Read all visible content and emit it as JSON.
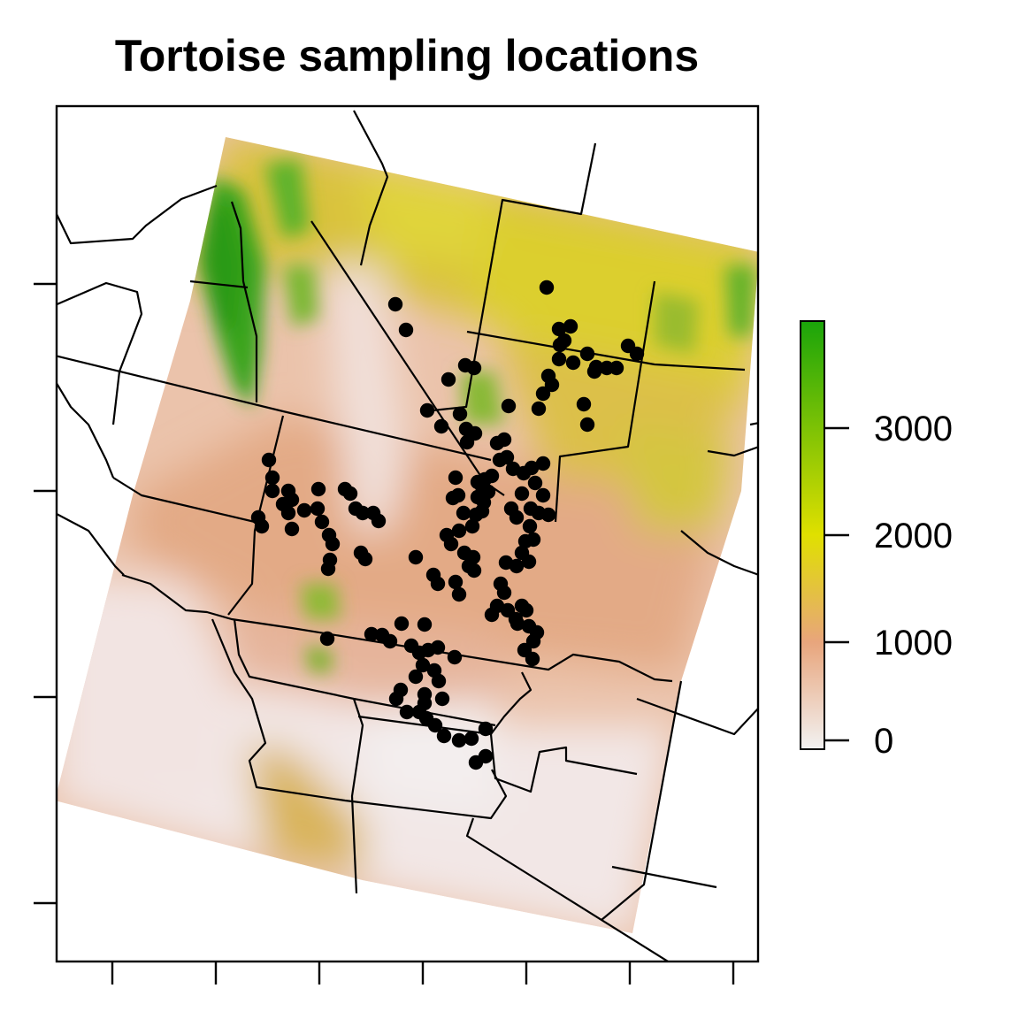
{
  "title": "Tortoise sampling locations",
  "legend": {
    "ticks": [
      {
        "value": 0,
        "label": "0"
      },
      {
        "value": 1000,
        "label": "1000"
      },
      {
        "value": 2000,
        "label": "2000"
      },
      {
        "value": 3000,
        "label": "3000"
      }
    ],
    "range": [
      0,
      4000
    ],
    "colors": [
      "#f2f2f2",
      "#e8a57c",
      "#e0e000",
      "#1aa40a"
    ]
  },
  "colors": {
    "points": "#000000",
    "boundaries": "#000000",
    "frame": "#000000"
  }
}
